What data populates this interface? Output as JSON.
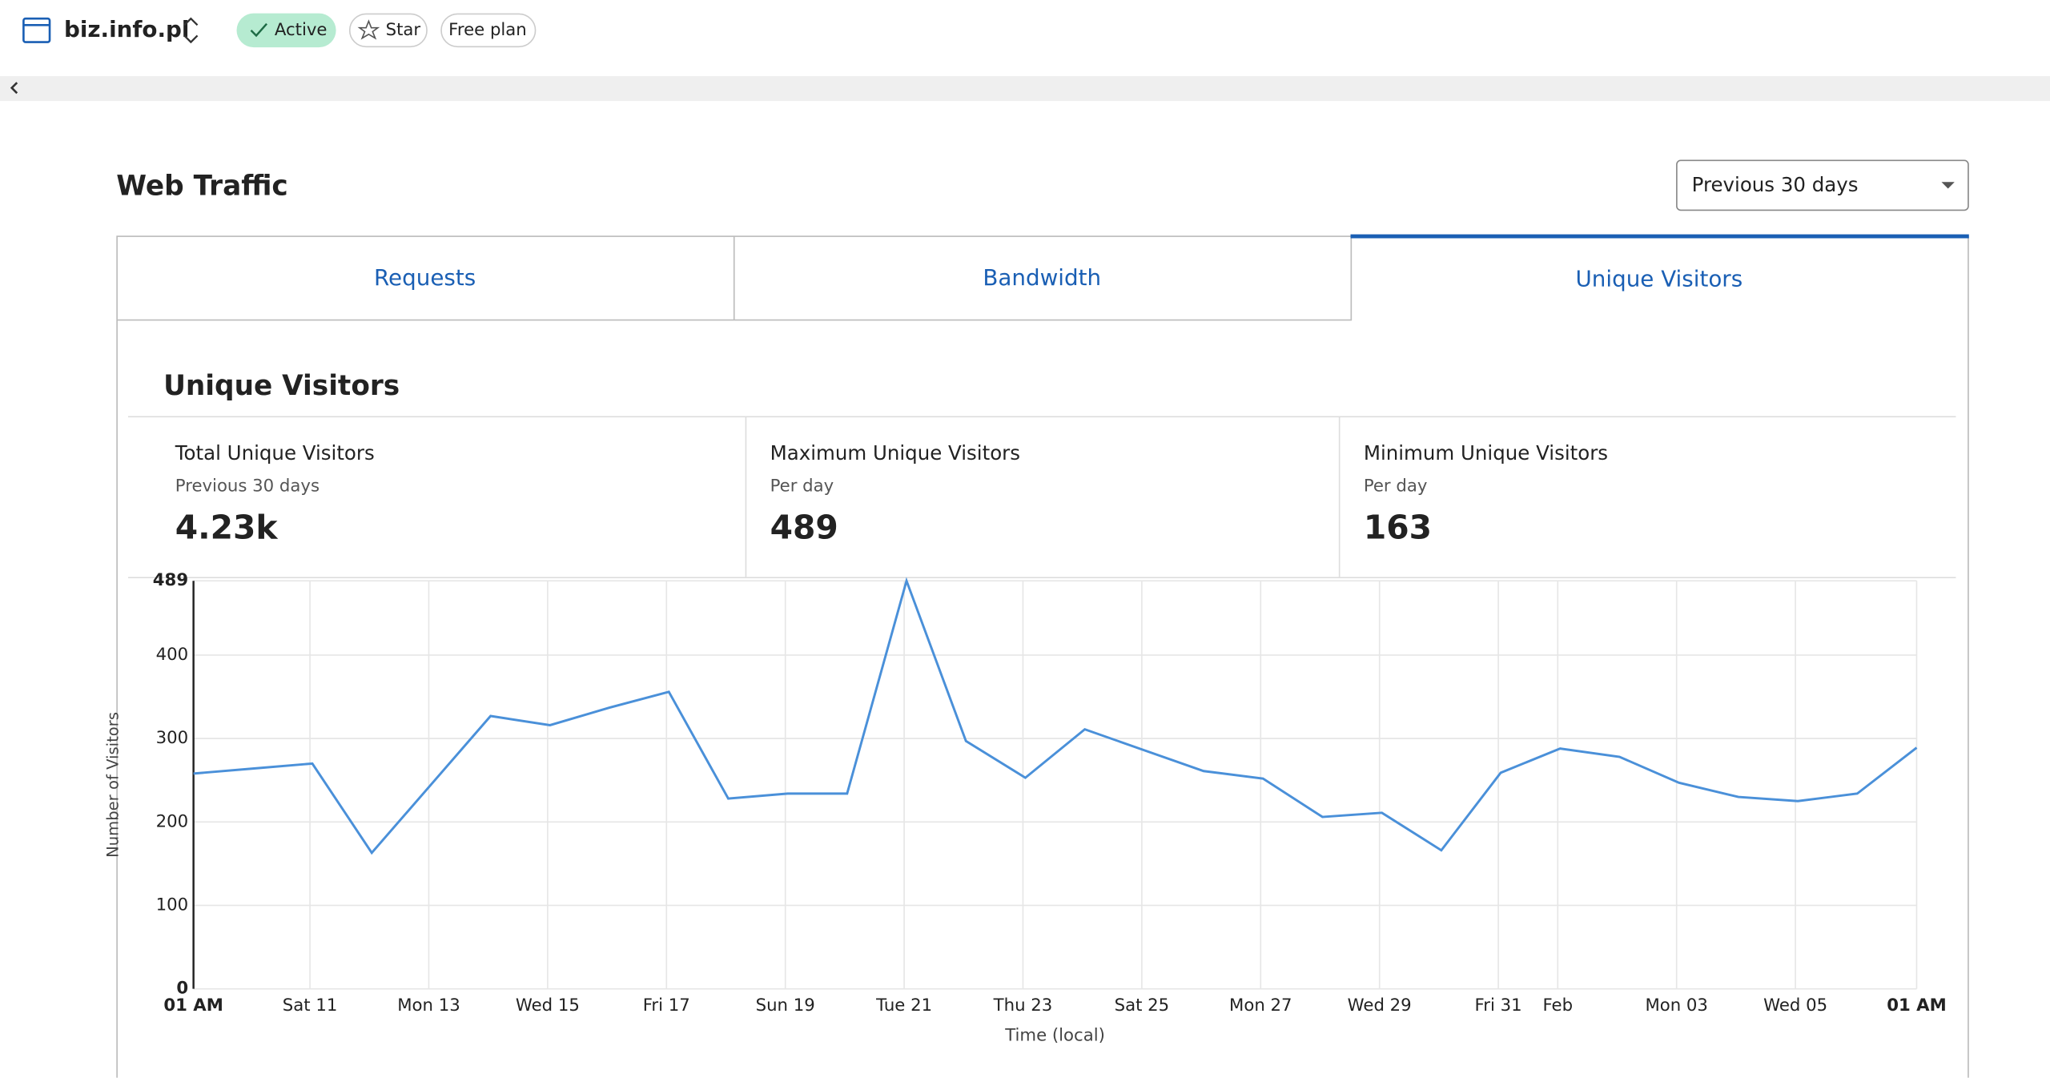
{
  "header": {
    "site": "biz.info.pl",
    "status": "Active",
    "star": "Star",
    "plan": "Free plan"
  },
  "section_title": "Web Traffic",
  "range": "Previous 30 days",
  "tabs": [
    "Requests",
    "Bandwidth",
    "Unique Visitors"
  ],
  "panel_title": "Unique Visitors",
  "stats": [
    {
      "label": "Total Unique Visitors",
      "sublabel": "Previous 30 days",
      "value": "4.23k"
    },
    {
      "label": "Maximum Unique Visitors",
      "sublabel": "Per day",
      "value": "489"
    },
    {
      "label": "Minimum Unique Visitors",
      "sublabel": "Per day",
      "value": "163"
    }
  ],
  "chart_data": {
    "type": "line",
    "y_label": "Number of Visitors",
    "x_label": "Time (local)",
    "color": "#4a90d9",
    "grid": true,
    "x": [
      0,
      1,
      2,
      3,
      4,
      5,
      6,
      7,
      8,
      9,
      10,
      11,
      12,
      13,
      14,
      15,
      16,
      17,
      18,
      19,
      20,
      21,
      22,
      23,
      24,
      25,
      26,
      27,
      28,
      29
    ],
    "values": [
      258,
      264,
      270,
      163,
      245,
      327,
      316,
      337,
      356,
      228,
      234,
      234,
      489,
      297,
      253,
      311,
      286,
      261,
      252,
      206,
      211,
      166,
      259,
      288,
      278,
      247,
      230,
      225,
      234,
      289
    ],
    "xlim": [
      0,
      29
    ],
    "xticks": [
      {
        "value": 0,
        "label": "01 AM"
      },
      {
        "value": 1.96,
        "label": "Sat 11"
      },
      {
        "value": 3.96,
        "label": "Mon 13"
      },
      {
        "value": 5.96,
        "label": "Wed 15"
      },
      {
        "value": 7.96,
        "label": "Fri 17"
      },
      {
        "value": 9.96,
        "label": "Sun 19"
      },
      {
        "value": 11.96,
        "label": "Tue 21"
      },
      {
        "value": 13.96,
        "label": "Thu 23"
      },
      {
        "value": 15.96,
        "label": "Sat 25"
      },
      {
        "value": 17.96,
        "label": "Mon 27"
      },
      {
        "value": 19.96,
        "label": "Wed 29"
      },
      {
        "value": 21.96,
        "label": "Fri 31"
      },
      {
        "value": 22.96,
        "label": "Feb"
      },
      {
        "value": 24.96,
        "label": "Mon 03"
      },
      {
        "value": 26.96,
        "label": "Wed 05"
      },
      {
        "value": 29,
        "label": "01 AM"
      }
    ],
    "ylim": [
      0,
      489
    ],
    "yticks": [
      0,
      100,
      200,
      300,
      400,
      489
    ]
  }
}
